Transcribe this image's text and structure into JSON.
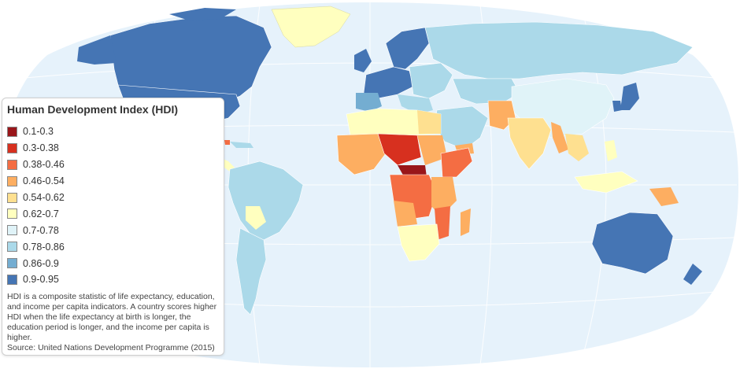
{
  "legend": {
    "title": "Human Development Index (HDI)",
    "classes": [
      {
        "label": "0.1-0.3",
        "color": "#99161a"
      },
      {
        "label": "0.3-0.38",
        "color": "#d7301f"
      },
      {
        "label": "0.38-0.46",
        "color": "#f46d43"
      },
      {
        "label": "0.46-0.54",
        "color": "#fdae61"
      },
      {
        "label": "0.54-0.62",
        "color": "#fee090"
      },
      {
        "label": "0.62-0.7",
        "color": "#ffffbf"
      },
      {
        "label": "0.7-0.78",
        "color": "#e0f3f8"
      },
      {
        "label": "0.78-0.86",
        "color": "#abd9e9"
      },
      {
        "label": "0.86-0.9",
        "color": "#74add1"
      },
      {
        "label": "0.9-0.95",
        "color": "#4575b4"
      }
    ],
    "description": "HDI is a composite statistic of life expectancy, education, and income per capita indicators. A country scores higher HDI when the life expectancy at birth is longer, the education period is longer, and the income per capita is higher.",
    "source": "Source: United Nations Development Programme (2015)"
  },
  "map": {
    "ocean_color": "#e6f2fb",
    "graticule_color": "#ffffff"
  }
}
